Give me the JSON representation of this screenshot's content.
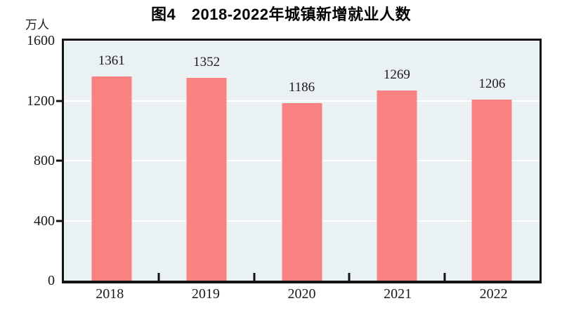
{
  "title": "图4　2018-2022年城镇新增就业人数",
  "unit_label": "万人",
  "chart_data": {
    "type": "bar",
    "title": "图4　2018-2022年城镇新增就业人数",
    "categories": [
      "2018",
      "2019",
      "2020",
      "2021",
      "2022"
    ],
    "values": [
      1361,
      1352,
      1186,
      1269,
      1206
    ],
    "xlabel": "",
    "ylabel": "万人",
    "ylim": [
      0,
      1600
    ],
    "yticks": [
      0,
      400,
      800,
      1200,
      1600
    ],
    "gridline_ticks": [
      400,
      800,
      1200
    ],
    "grid": true,
    "legend": "none",
    "colors": {
      "bar_fill": "#fa8181",
      "plot_background": "#eaf1f3",
      "gridline": "#ffffff",
      "axis": "#141414",
      "text": "#1a1a1a",
      "page_background": "#ffffff"
    }
  }
}
